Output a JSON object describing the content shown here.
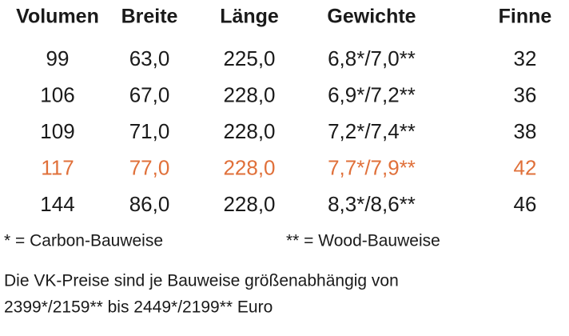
{
  "table": {
    "headers": [
      "Volumen",
      "Breite",
      "Länge",
      "Gewichte",
      "Finne"
    ],
    "rows": [
      [
        "99",
        "63,0",
        "225,0",
        "6,8*/7,0**",
        "32"
      ],
      [
        "106",
        "67,0",
        "228,0",
        "6,9*/7,2**",
        "36"
      ],
      [
        "109",
        "71,0",
        "228,0",
        "7,2*/7,4**",
        "38"
      ],
      [
        "117",
        "77,0",
        "228,0",
        "7,7*/7,9**",
        "42"
      ],
      [
        "144",
        "86,0",
        "228,0",
        "8,3*/8,6**",
        "46"
      ]
    ],
    "highlight_row": 3,
    "highlight_color": "#e0703a"
  },
  "footnotes": [
    "* = Carbon-Bauweise",
    "** = Wood-Bauweise"
  ],
  "note": [
    "Die VK-Preise sind je Bauweise größenabhängig von",
    "2399*/2159** bis 2449*/2199** Euro"
  ]
}
